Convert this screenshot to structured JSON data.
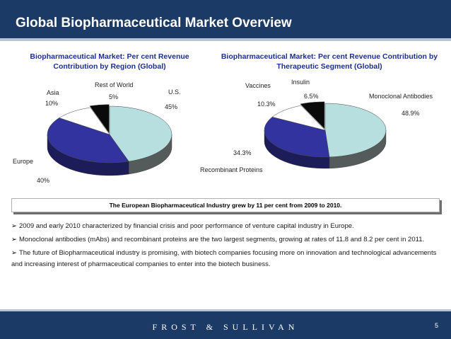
{
  "header": {
    "title": "Global Biopharmaceutical Market Overview"
  },
  "chart_data": [
    {
      "type": "pie",
      "title": "Biopharmaceutical Market: Per cent Revenue Contribution by Region (Global)",
      "slices": [
        {
          "label": "U.S.",
          "value": 45,
          "value_label": "45%",
          "color": "#b7dfe0"
        },
        {
          "label": "Europe",
          "value": 40,
          "value_label": "40%",
          "color": "#3333a0"
        },
        {
          "label": "Asia",
          "value": 10,
          "value_label": "10%",
          "color": "#ffffff"
        },
        {
          "label": "Rest of World",
          "value": 5,
          "value_label": "5%",
          "color": "#0a0a0a"
        }
      ]
    },
    {
      "type": "pie",
      "title": "Biopharmaceutical Market: Per cent Revenue Contribution by Therapeutic Segment (Global)",
      "slices": [
        {
          "label": "Monoclonal Antibodies",
          "value": 48.9,
          "value_label": "48.9%",
          "color": "#b7dfe0"
        },
        {
          "label": "Recombinant Proteins",
          "value": 34.3,
          "value_label": "34.3%",
          "color": "#3333a0"
        },
        {
          "label": "Vaccines",
          "value": 10.3,
          "value_label": "10.3%",
          "color": "#ffffff"
        },
        {
          "label": "Insulin",
          "value": 6.5,
          "value_label": "6.5%",
          "color": "#0a0a0a"
        }
      ]
    }
  ],
  "note": "The European Biopharmaceutical Industry grew by 11 per cent from 2009 to 2010.",
  "bullets": [
    "2009 and early 2010 characterized by financial crisis and poor performance of venture capital industry in Europe.",
    "Monoclonal antibodies (mAbs) and recombinant proteins are the two largest segments, growing at rates of 11.8 and 8.2 per cent in 2011.",
    "The future of Biopharmaceutical industry is promising, with biotech companies focusing more on innovation and technological advancements and increasing interest of pharmaceutical companies to enter into the biotech business."
  ],
  "footer": {
    "brand": "FROST & SULLIVAN",
    "page": "5"
  }
}
